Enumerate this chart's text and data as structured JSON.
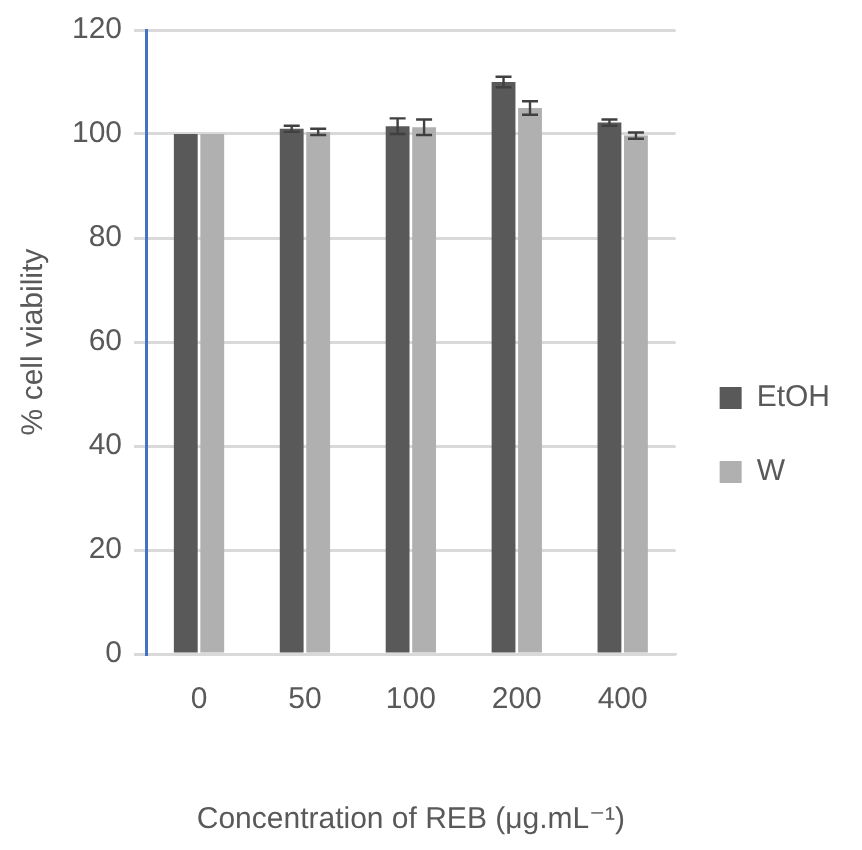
{
  "chart_data": {
    "type": "bar",
    "xlabel": "Concentration of REB (μg.mL⁻¹)",
    "ylabel": "% cell viability",
    "categories": [
      "0",
      "50",
      "100",
      "200",
      "400"
    ],
    "series": [
      {
        "name": "EtOH",
        "color": "#595959",
        "values": [
          100,
          101,
          101.5,
          110,
          102.2
        ],
        "errors": [
          null,
          0.6,
          1.5,
          1,
          0.6
        ]
      },
      {
        "name": "W",
        "color": "#b0b0b0",
        "values": [
          100,
          100.4,
          101.3,
          105,
          99.7
        ],
        "errors": [
          null,
          0.6,
          1.5,
          1.3,
          0.6
        ]
      }
    ],
    "ylim": [
      0,
      120
    ],
    "yticks": [
      0,
      20,
      40,
      60,
      80,
      100,
      120
    ],
    "grid": "y",
    "legend": "right"
  }
}
